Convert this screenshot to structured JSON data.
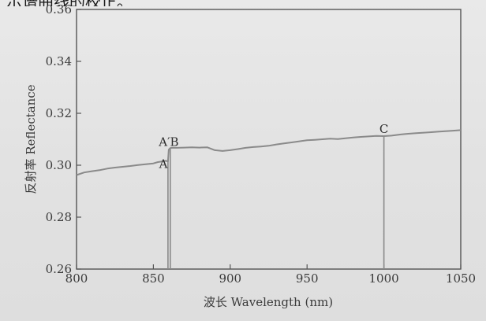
{
  "page": {
    "caption_fragment": "示谱曲线的校正。"
  },
  "chart_data": {
    "type": "line",
    "title": "",
    "xlabel": "波长 Wavelength (nm)",
    "ylabel": "反射率 Reflectance",
    "xlim": [
      800,
      1050
    ],
    "ylim": [
      0.26,
      0.36
    ],
    "xticks": [
      800,
      850,
      900,
      950,
      1000,
      1050
    ],
    "yticks": [
      0.26,
      0.28,
      0.3,
      0.32,
      0.34,
      0.36
    ],
    "xtick_labels": [
      "800",
      "850",
      "900",
      "950",
      "1000",
      "1050"
    ],
    "ytick_labels": [
      "0.26",
      "0.28",
      "0.30",
      "0.32",
      "0.34",
      "0.36"
    ],
    "grid": false,
    "line_color": "#8a8a8a",
    "series": [
      {
        "x": [
          800,
          805,
          810,
          815,
          820,
          825,
          830,
          835,
          840,
          845,
          850,
          853,
          856,
          858,
          859.5,
          860,
          861,
          862,
          865,
          870,
          875,
          880,
          885,
          890,
          895,
          900,
          905,
          910,
          915,
          920,
          925,
          930,
          935,
          940,
          945,
          950,
          955,
          960,
          965,
          970,
          975,
          980,
          985,
          990,
          995,
          1000,
          1005,
          1010,
          1015,
          1020,
          1025,
          1030,
          1035,
          1040,
          1045,
          1050
        ],
        "y": [
          0.2962,
          0.2972,
          0.2977,
          0.2981,
          0.2987,
          0.2991,
          0.2994,
          0.2997,
          0.3001,
          0.3004,
          0.3007,
          0.3012,
          0.3015,
          0.3017,
          0.3015,
          0.306,
          0.3066,
          0.3067,
          0.3067,
          0.3068,
          0.3069,
          0.3068,
          0.3069,
          0.3058,
          0.3055,
          0.3058,
          0.3062,
          0.3067,
          0.307,
          0.3072,
          0.3075,
          0.308,
          0.3084,
          0.3088,
          0.3092,
          0.3096,
          0.3098,
          0.31,
          0.3102,
          0.3101,
          0.3104,
          0.3107,
          0.3109,
          0.3111,
          0.3113,
          0.3112,
          0.3114,
          0.3118,
          0.3121,
          0.3123,
          0.3125,
          0.3127,
          0.3129,
          0.3131,
          0.3133,
          0.3135
        ]
      }
    ],
    "markers": [
      {
        "x": 859.5,
        "y": 0.3015,
        "label": "A"
      },
      {
        "x": 861,
        "y": 0.3065,
        "label": "B"
      },
      {
        "x": 1000,
        "y": 0.3112,
        "label": "C"
      }
    ],
    "annotations": [
      {
        "text": "A",
        "x": 856.5,
        "y": 0.299
      },
      {
        "text": "A′B",
        "x": 860,
        "y": 0.3075
      },
      {
        "text": "C",
        "x": 1000,
        "y": 0.3125
      }
    ]
  }
}
